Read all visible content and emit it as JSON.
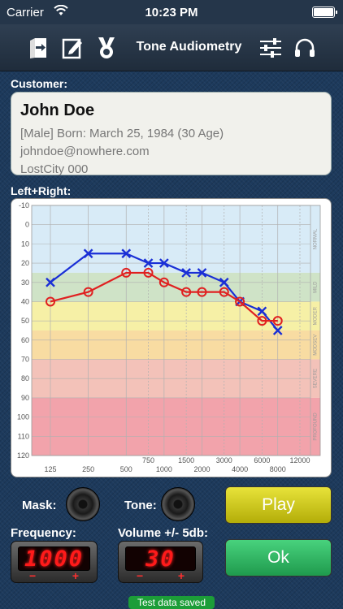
{
  "status_bar": {
    "carrier": "Carrier",
    "time": "10:23 PM"
  },
  "nav": {
    "title": "Tone Audiometry",
    "icons": [
      "exit-door-icon",
      "edit-note-icon",
      "award-medal-icon",
      "sliders-settings-icon",
      "headphones-icon"
    ]
  },
  "customer": {
    "label": "Customer:",
    "name": "John Doe",
    "details": "[Male] Born: March 25, 1984 (30 Age)",
    "email": "johndoe@nowhere.com",
    "location": "LostCity 000"
  },
  "chart_label": "Left+Right:",
  "chart_data": {
    "type": "line",
    "title": "",
    "xlabel": "",
    "ylabel": "",
    "ylim": [
      -10,
      120
    ],
    "y_ticks": [
      -10,
      0,
      10,
      20,
      30,
      40,
      50,
      60,
      70,
      80,
      90,
      100,
      110,
      120
    ],
    "x_ticks_bottom": [
      "125",
      "250",
      "500",
      "1000",
      "2000",
      "4000",
      "8000"
    ],
    "x_ticks_top": [
      "750",
      "1500",
      "3000",
      "6000",
      "12000"
    ],
    "zones": [
      {
        "label": "NORMAL",
        "from": -10,
        "to": 25,
        "color": "#d8ebf7"
      },
      {
        "label": "MILD",
        "from": 25,
        "to": 40,
        "color": "#cfe3c7"
      },
      {
        "label": "MODER",
        "from": 40,
        "to": 55,
        "color": "#f6f0a6"
      },
      {
        "label": "MODSEV",
        "from": 55,
        "to": 70,
        "color": "#f8dca2"
      },
      {
        "label": "SEVERE",
        "from": 70,
        "to": 90,
        "color": "#f3c2b9"
      },
      {
        "label": "PROFOUND",
        "from": 90,
        "to": 120,
        "color": "#f2a3ab"
      }
    ],
    "series": [
      {
        "marker": "x",
        "color": "#1a2fd6",
        "x": [
          "125",
          "250",
          "500",
          "750",
          "1000",
          "1500",
          "2000",
          "3000",
          "4000",
          "6000",
          "8000"
        ],
        "values": [
          30,
          15,
          15,
          20,
          20,
          25,
          25,
          30,
          40,
          45,
          55
        ]
      },
      {
        "marker": "o",
        "color": "#e02020",
        "x": [
          "125",
          "250",
          "500",
          "750",
          "1000",
          "1500",
          "2000",
          "3000",
          "4000",
          "6000",
          "8000"
        ],
        "values": [
          40,
          35,
          25,
          25,
          30,
          35,
          35,
          35,
          40,
          50,
          50
        ]
      }
    ]
  },
  "controls": {
    "mask_label": "Mask:",
    "tone_label": "Tone:",
    "frequency_label": "Frequency:",
    "frequency_value": "1000",
    "volume_label": "Volume +/- 5db:",
    "volume_value": "30",
    "minus": "−",
    "plus": "+",
    "play_label": "Play",
    "ok_label": "Ok"
  },
  "toast": "Test data saved"
}
